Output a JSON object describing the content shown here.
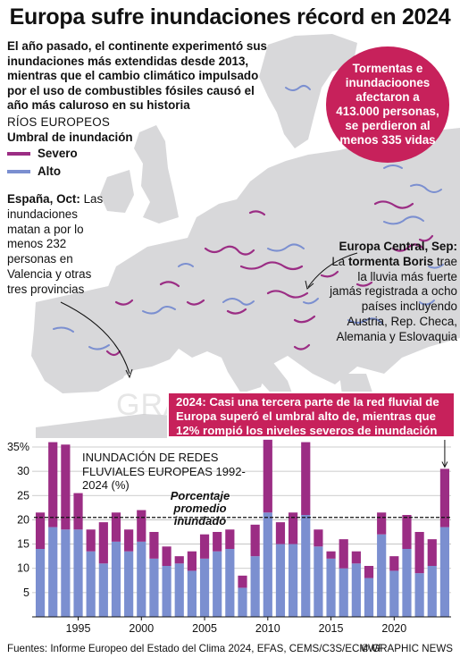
{
  "title": "Europa sufre inundaciones récord en 2024",
  "intro": "El año pasado, el continente experimentó sus inundaciones más extendidas desde 2013, mientras que el cambio climático impulsado por el uso de combustibles fósiles causó el año más caluroso en su historia",
  "bubble": "Tormentas e inundacioones afectaron a 413.000 personas, se perdieron al menos 335 vidas",
  "legend": {
    "heading": "RÍOS EUROPEOS",
    "subheading": "Umbral de inundación",
    "severe_label": "Severo",
    "high_label": "Alto",
    "severe_color": "#9b2d84",
    "high_color": "#7b8fd0"
  },
  "spain_note": {
    "title": "España, Oct:",
    "text": " Las inundaciones matan a por lo menos 232 personas en Valencia y otras tres provincias"
  },
  "central_note": {
    "title": "Europa Central, Sep:",
    "text_a": " La ",
    "storm": "tormenta Boris",
    "text_b": " trae la lluvia más fuerte jamás registrada a ocho países incluyendo Austria, Rep. Checa, Alemania y Eslovaquia"
  },
  "callout": "2024: Casi una tercera parte de la red fluvial de Europa superó el umbral alto de, mientras que 12% rompió los niveles severos de inundación",
  "watermark": "GRAPHIC NEWS",
  "chart_data": {
    "type": "bar",
    "title": "INUNDACIÓN DE REDES FLUVIALES EUROPEAS 1992-2024 (%)",
    "x": [
      1992,
      1993,
      1994,
      1995,
      1996,
      1997,
      1998,
      1999,
      2000,
      2001,
      2002,
      2003,
      2004,
      2005,
      2006,
      2007,
      2008,
      2009,
      2010,
      2011,
      2012,
      2013,
      2014,
      2015,
      2016,
      2017,
      2018,
      2019,
      2020,
      2021,
      2022,
      2023,
      2024
    ],
    "series": [
      {
        "name": "Alto",
        "values": [
          14,
          18.5,
          18,
          18,
          13.5,
          11,
          15.5,
          13.5,
          15.5,
          12,
          10.5,
          11,
          9.5,
          12,
          13.5,
          14,
          6,
          12.5,
          21.5,
          15,
          15,
          21,
          14.5,
          12,
          10,
          11,
          8,
          17,
          9.5,
          14,
          9,
          10.5,
          18.5
        ]
      },
      {
        "name": "Severo",
        "values": [
          7.5,
          17.5,
          17.5,
          7.5,
          4.5,
          8.5,
          6,
          4.5,
          6.5,
          5.5,
          4,
          1.5,
          4,
          5,
          4,
          4,
          2.5,
          6.5,
          15,
          4.5,
          6.5,
          15,
          3.5,
          1.5,
          6,
          2.5,
          2.5,
          4.5,
          3,
          7,
          8.5,
          5.5,
          12
        ]
      }
    ],
    "series_note": "Bar total = high-threshold exceedance; Alto = portion above high threshold only, Severo = portion above severe threshold",
    "ylim": [
      0,
      35
    ],
    "yticks": [
      5,
      10,
      15,
      20,
      25,
      30,
      35
    ],
    "ytick_labels": [
      "5",
      "10",
      "15",
      "20",
      "25",
      "30",
      "35%"
    ],
    "xticks": [
      1995,
      2000,
      2005,
      2010,
      2015,
      2020
    ],
    "average_value": 20.5,
    "average_label_a": "Porcentaje",
    "average_label_b": "promedio",
    "average_label_c": "inundado",
    "colors": {
      "high": "#7b8fd0",
      "severe": "#9b2d84"
    }
  },
  "footer": {
    "source": "Fuentes: Informe Europeo del Estado del Clima 2024, EFAS, CEMS/C3S/ECMWF",
    "brand": "© GRAPHIC NEWS"
  }
}
